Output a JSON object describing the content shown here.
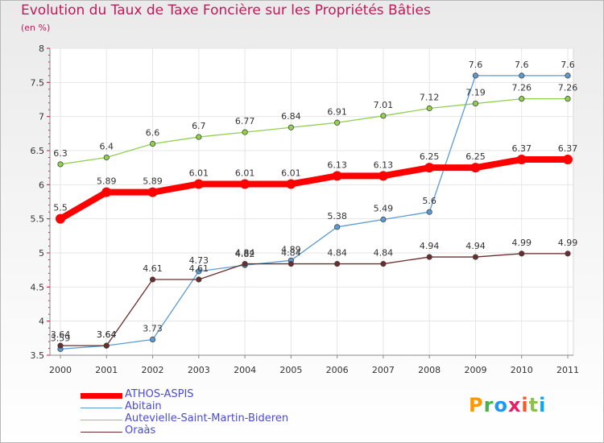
{
  "title": "Evolution du Taux de Taxe Foncière sur les Propriétés Bâties",
  "subtitle": "(en %)",
  "logo_text": "Proxiti",
  "chart_data": {
    "type": "line",
    "title": "Evolution du Taux de Taxe Foncière sur les Propriétés Bâties",
    "ylabel": "(en %)",
    "xlabel": "",
    "categories": [
      "2000",
      "2001",
      "2002",
      "2003",
      "2004",
      "2005",
      "2006",
      "2007",
      "2008",
      "2009",
      "2010",
      "2011"
    ],
    "ylim": [
      3.5,
      8
    ],
    "yticks": [
      "3.5",
      "4",
      "4.5",
      "5",
      "5.5",
      "6",
      "6.5",
      "7",
      "7.5",
      "8"
    ],
    "grid": true,
    "legend_position": "bottom-left",
    "series": [
      {
        "name": "ATHOS-ASPIS",
        "color": "#ff0000",
        "values": [
          5.5,
          5.89,
          5.89,
          6.01,
          6.01,
          6.01,
          6.13,
          6.13,
          6.25,
          6.25,
          6.37,
          6.37
        ],
        "labels": [
          "5.5",
          "5.89",
          "5.89",
          "6.01",
          "6.01",
          "6.01",
          "6.13",
          "6.13",
          "6.25",
          "6.25",
          "6.37",
          "6.37"
        ]
      },
      {
        "name": "Abitain",
        "color": "#5b9bd5",
        "values": [
          3.59,
          3.64,
          3.73,
          4.73,
          4.82,
          4.89,
          5.38,
          5.49,
          5.6,
          7.6,
          7.6,
          7.6
        ],
        "labels": [
          "3.59",
          "3.64",
          "3.73",
          "4.73",
          "4.82",
          "4.89",
          "5.38",
          "5.49",
          "5.6",
          "7.6",
          "7.6",
          "7.6"
        ]
      },
      {
        "name": "Autevielle-Saint-Martin-Bideren",
        "color": "#92d050",
        "values": [
          6.3,
          6.4,
          6.6,
          6.7,
          6.77,
          6.84,
          6.91,
          7.01,
          7.12,
          7.19,
          7.26,
          7.26
        ],
        "labels": [
          "6.3",
          "6.4",
          "6.6",
          "6.7",
          "6.77",
          "6.84",
          "6.91",
          "7.01",
          "7.12",
          "7.19",
          "7.26",
          "7.26"
        ]
      },
      {
        "name": "Oraàs",
        "color": "#6b2c2c",
        "values": [
          3.64,
          3.64,
          4.61,
          4.61,
          4.84,
          4.84,
          4.84,
          4.84,
          4.94,
          4.94,
          4.99,
          4.99
        ],
        "labels": [
          "3.64",
          "3.64",
          "4.61",
          "4.61",
          "4.84",
          "4.84",
          "4.84",
          "4.84",
          "4.94",
          "4.94",
          "4.99",
          "4.99"
        ]
      }
    ]
  }
}
